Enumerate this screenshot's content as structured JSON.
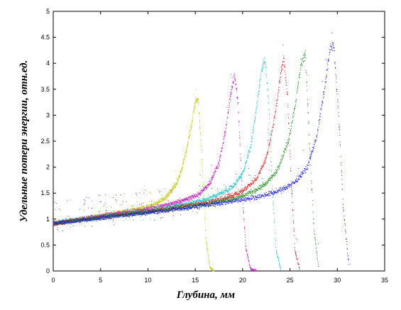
{
  "chart_data": {
    "type": "scatter",
    "title": "",
    "xlabel": "Глубина, мм",
    "ylabel": "Удельные потери энергии, отн.ед.",
    "xlim": [
      0,
      35
    ],
    "ylim": [
      0,
      5
    ],
    "xticks": [
      0,
      5,
      10,
      15,
      20,
      25,
      30,
      35
    ],
    "yticks": [
      0,
      0.5,
      1,
      1.5,
      2,
      2.5,
      3,
      3.5,
      4,
      4.5,
      5
    ],
    "xtick_labels": [
      "0",
      "5",
      "10",
      "15",
      "20",
      "25",
      "30",
      "35"
    ],
    "ytick_labels": [
      "0",
      "0.5",
      "1",
      "1.5",
      "2",
      "2.5",
      "3",
      "3.5",
      "4",
      "4.5",
      "5"
    ],
    "grid": false,
    "legend": "none",
    "series": [
      {
        "color": "#c8c81e",
        "x": [
          0,
          2,
          4,
          6,
          8,
          10,
          11,
          12,
          13,
          13.5,
          14,
          14.5,
          15,
          15.3,
          15.7,
          16.1,
          16.5,
          17
        ],
        "y": [
          0.92,
          0.98,
          1.04,
          1.1,
          1.16,
          1.24,
          1.32,
          1.45,
          1.7,
          1.95,
          2.3,
          2.75,
          3.3,
          3.3,
          2.0,
          0.6,
          0.08,
          0.0
        ]
      },
      {
        "color": "#c020c0",
        "x": [
          0,
          2,
          4,
          6,
          8,
          10,
          12,
          14,
          15.5,
          16.5,
          17.5,
          18.2,
          18.7,
          19.1,
          19.5,
          19.9,
          20.3,
          20.8,
          21.5
        ],
        "y": [
          0.92,
          0.98,
          1.04,
          1.09,
          1.14,
          1.2,
          1.28,
          1.38,
          1.5,
          1.7,
          2.1,
          2.75,
          3.4,
          3.8,
          3.2,
          1.6,
          0.45,
          0.05,
          0.0
        ]
      },
      {
        "color": "#20c0c0",
        "x": [
          0,
          2,
          4,
          6,
          8,
          10,
          12,
          14,
          16,
          18,
          19,
          20,
          20.8,
          21.4,
          21.9,
          22.3,
          22.7,
          23.1,
          23.5,
          24
        ],
        "y": [
          0.92,
          0.98,
          1.03,
          1.08,
          1.12,
          1.17,
          1.23,
          1.3,
          1.38,
          1.52,
          1.65,
          1.9,
          2.4,
          3.1,
          3.8,
          4.1,
          3.3,
          1.6,
          0.4,
          0.03
        ]
      },
      {
        "color": "#e01818",
        "x": [
          0,
          2,
          4,
          6,
          8,
          10,
          12,
          14,
          16,
          18,
          20,
          21.5,
          22.5,
          23.3,
          23.9,
          24.3,
          24.7,
          25.1,
          25.5,
          26
        ],
        "y": [
          0.92,
          0.97,
          1.02,
          1.07,
          1.11,
          1.15,
          1.2,
          1.26,
          1.32,
          1.4,
          1.55,
          1.8,
          2.2,
          2.9,
          3.7,
          4.1,
          3.4,
          1.7,
          0.4,
          0.03
        ]
      },
      {
        "color": "#1a8c1a",
        "x": [
          0,
          2,
          4,
          6,
          8,
          10,
          12,
          14,
          16,
          18,
          20,
          22,
          23.5,
          24.8,
          25.6,
          26.1,
          26.6,
          27.0,
          27.5,
          28
        ],
        "y": [
          0.92,
          0.97,
          1.01,
          1.06,
          1.1,
          1.14,
          1.19,
          1.24,
          1.3,
          1.36,
          1.45,
          1.62,
          1.9,
          2.5,
          3.3,
          3.95,
          4.2,
          2.6,
          0.8,
          0.05
        ]
      },
      {
        "color": "#1a1ae0",
        "x": [
          0,
          2,
          4,
          6,
          8,
          10,
          12,
          14,
          16,
          18,
          20,
          22,
          24,
          25.5,
          26.8,
          27.8,
          28.6,
          29.2,
          29.6,
          30.1,
          30.6,
          31.2
        ],
        "y": [
          0.92,
          0.96,
          1.0,
          1.05,
          1.09,
          1.13,
          1.17,
          1.22,
          1.27,
          1.32,
          1.38,
          1.45,
          1.56,
          1.72,
          2.0,
          2.6,
          3.5,
          4.3,
          4.35,
          3.0,
          1.2,
          0.1
        ]
      }
    ]
  }
}
